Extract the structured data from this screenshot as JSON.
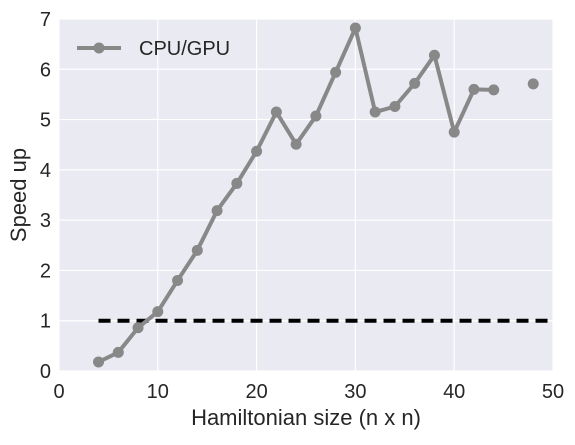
{
  "chart_data": {
    "type": "line",
    "title": "",
    "xlabel": "Hamiltonian size (n x n)",
    "ylabel": "Speed up",
    "xlim": [
      0,
      50
    ],
    "ylim": [
      0,
      7
    ],
    "xticks": [
      0,
      10,
      20,
      30,
      40,
      50
    ],
    "yticks": [
      0,
      1,
      2,
      3,
      4,
      5,
      6,
      7
    ],
    "grid": true,
    "legend_position": "top-left",
    "background_color": "#eaeaf2",
    "grid_color": "#ffffff",
    "series": [
      {
        "name": "CPU/GPU",
        "color": "#888888",
        "marker": "circle",
        "x": [
          4,
          6,
          8,
          10,
          12,
          14,
          16,
          18,
          20,
          22,
          24,
          26,
          28,
          30,
          32,
          34,
          36,
          38,
          40,
          42,
          44,
          48
        ],
        "y": [
          0.18,
          0.37,
          0.86,
          1.18,
          1.8,
          2.4,
          3.19,
          3.73,
          4.37,
          5.15,
          4.51,
          5.07,
          5.94,
          6.82,
          5.15,
          5.26,
          5.72,
          6.28,
          4.75,
          5.6,
          5.59,
          5.71
        ],
        "segments": [
          [
            0,
            20
          ]
        ]
      }
    ],
    "reference_lines": [
      {
        "y": 1,
        "x_start": 4,
        "x_end": 50,
        "style": "dashed",
        "color": "#000000"
      }
    ]
  }
}
